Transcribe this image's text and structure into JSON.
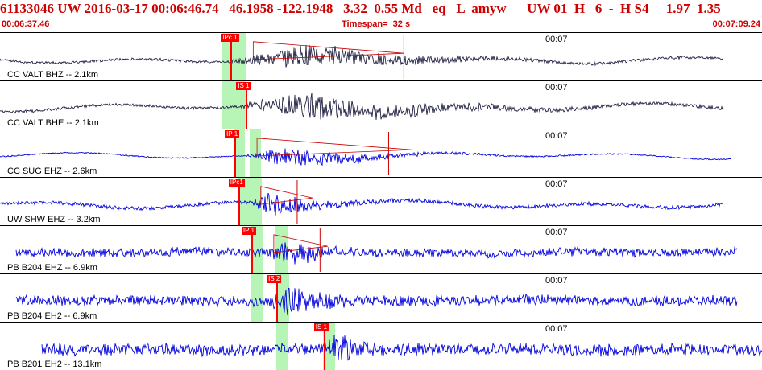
{
  "header": {
    "summary": "61133046 UW 2016-03-17 00:06:46.74   46.1958 -122.1948   3.32  0.55 Md   eq   L  amyw      UW 01  H   6  -  H S4     1.97  1.35"
  },
  "timeline": {
    "start": "00:06:37.46",
    "timespan": "Timespan=  32 s",
    "end": "00:07:09.24"
  },
  "colors": {
    "header_text": "#cc0000",
    "pick": "#ff0000",
    "band": "#90f090",
    "trace_dark": "#222244",
    "trace_blue": "#0000dd",
    "trace_red": "#cc0000"
  },
  "panels": [
    {
      "label": "CC VALT BHZ -- 2.1km",
      "time": "00:07",
      "pick": "IPc 1",
      "trace_color": "dark",
      "amplitude": 0.35,
      "noise": 0.1,
      "event_start": 0.3,
      "event_peak": 0.4,
      "tail_mid": 0.58,
      "tail_color": "red",
      "has_triangle": true,
      "triangle_end": 0.53,
      "has_vertical_tick": true,
      "vertical_tick": 0.53,
      "trace_start": 0.0,
      "trace_end": 0.95,
      "band_1": [
        0.292,
        0.305
      ],
      "band_2": [
        0.306,
        0.323
      ],
      "pick_pos": 0.29
    },
    {
      "label": "CC VALT BHE -- 2.1km",
      "time": "00:07",
      "pick": "IS 1",
      "trace_color": "dark",
      "amplitude": 0.38,
      "noise": 0.1,
      "event_start": 0.31,
      "event_peak": 0.41,
      "tail_mid": 0.62,
      "tail_color": "dark",
      "has_triangle": false,
      "triangle_end": 0.0,
      "has_vertical_tick": false,
      "vertical_tick": 0.0,
      "trace_start": 0.0,
      "trace_end": 0.95,
      "band_1": [
        0.292,
        0.305
      ],
      "band_2": [
        0.306,
        0.323
      ],
      "pick_pos": 0.31
    },
    {
      "label": "CC SUG EHZ -- 2.6km",
      "time": "00:07",
      "pick": "IP 1",
      "trace_color": "blue",
      "amplitude": 0.3,
      "noise": 0.05,
      "event_start": 0.32,
      "event_peak": 0.38,
      "tail_mid": 0.52,
      "tail_color": "blue",
      "has_triangle": true,
      "triangle_end": 0.54,
      "has_vertical_tick": true,
      "vertical_tick": 0.51,
      "trace_start": 0.0,
      "trace_end": 0.96,
      "band_1": [
        0.307,
        0.321
      ],
      "band_2": [
        0.328,
        0.342
      ],
      "pick_pos": 0.295
    },
    {
      "label": "UW SHW EHZ -- 3.2km",
      "time": "00:07",
      "pick": "IPc1",
      "trace_color": "blue",
      "amplitude": 0.36,
      "noise": 0.14,
      "event_start": 0.33,
      "event_peak": 0.35,
      "tail_mid": 0.43,
      "tail_color": "blue",
      "has_triangle": true,
      "triangle_end": 0.41,
      "has_vertical_tick": true,
      "vertical_tick": 0.39,
      "trace_start": 0.0,
      "trace_end": 0.95,
      "band_1": [
        0.313,
        0.329
      ],
      "band_2": [
        0.33,
        0.344
      ],
      "pick_pos": 0.3
    },
    {
      "label": "PB B204 EHZ -- 6.9km",
      "time": "00:07",
      "pick": "IP 1",
      "trace_color": "blue",
      "amplitude": 0.38,
      "noise": 0.3,
      "event_start": 0.35,
      "event_peak": 0.38,
      "tail_mid": 0.44,
      "tail_color": "blue",
      "has_triangle": true,
      "triangle_end": 0.43,
      "has_vertical_tick": true,
      "vertical_tick": 0.42,
      "trace_start": 0.022,
      "trace_end": 0.968,
      "band_1": [
        0.33,
        0.345
      ],
      "band_2": [
        0.362,
        0.378
      ],
      "pick_pos": 0.317
    },
    {
      "label": "PB B204 EH2 -- 6.9km",
      "time": "00:07",
      "pick": "IS 2",
      "trace_color": "blue",
      "amplitude": 0.42,
      "noise": 0.33,
      "event_start": 0.35,
      "event_peak": 0.38,
      "tail_mid": 0.44,
      "tail_color": "blue",
      "has_triangle": false,
      "triangle_end": 0.0,
      "has_vertical_tick": false,
      "vertical_tick": 0.0,
      "trace_start": 0.022,
      "trace_end": 0.968,
      "band_1": [
        0.33,
        0.345
      ],
      "band_2": [
        0.364,
        0.379
      ],
      "pick_pos": 0.35
    },
    {
      "label": "PB B201 EH2 -- 13.1km",
      "time": "00:07",
      "pick": "IS 1",
      "trace_color": "blue",
      "amplitude": 0.45,
      "noise": 0.35,
      "event_start": 0.43,
      "event_peak": 0.44,
      "tail_mid": 0.48,
      "tail_color": "blue",
      "has_triangle": false,
      "triangle_end": 0.0,
      "has_vertical_tick": false,
      "vertical_tick": 0.0,
      "trace_start": 0.055,
      "trace_end": 1.0,
      "band_1": [
        0.363,
        0.378
      ],
      "band_2": [
        0.424,
        0.44
      ],
      "pick_pos": 0.412
    }
  ]
}
